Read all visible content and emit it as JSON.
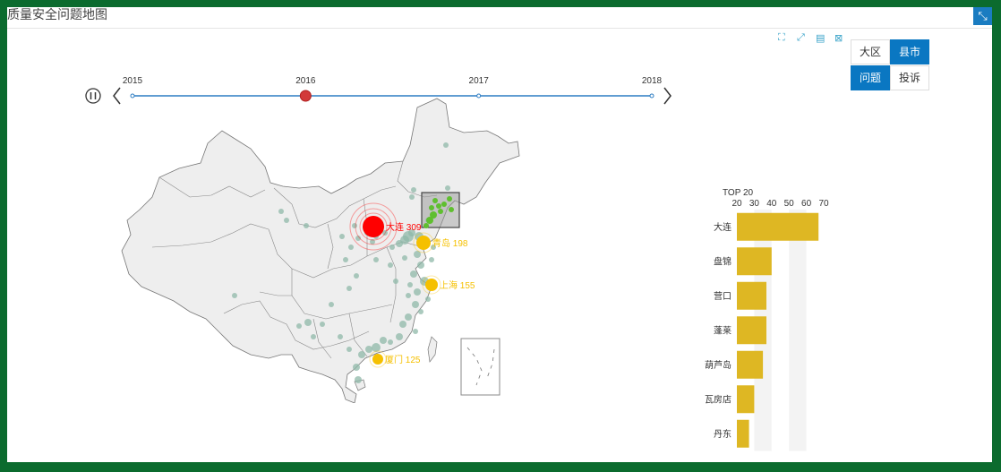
{
  "header": {
    "title": "质量安全问题地图"
  },
  "toolbox": {
    "icons": [
      "zoom-select-icon",
      "zoom-reset-icon",
      "data-view-icon",
      "save-image-icon"
    ],
    "glyphs": [
      "⛶",
      "⤢",
      "▤",
      "⊠"
    ]
  },
  "toggles": {
    "region": {
      "options": [
        "大区",
        "县市"
      ],
      "selected": "县市"
    },
    "metric": {
      "options": [
        "问题",
        "投诉"
      ],
      "selected": "问题"
    }
  },
  "timeline": {
    "years": [
      "2015",
      "2016",
      "2017",
      "2018"
    ],
    "current": "2016"
  },
  "colors": {
    "accent": "#0a77c2",
    "timeline": "#2d7dc3",
    "bar": "#deb723",
    "top": "#ff0000",
    "mid": "#f5c000",
    "dot": "#8fb8a8",
    "green": "#5fbf2f"
  },
  "map_labels": [
    {
      "name": "大连",
      "value": 309,
      "text": "大连 309",
      "rank": "top"
    },
    {
      "name": "青岛",
      "value": 198,
      "text": "青岛 198",
      "rank": "mid"
    },
    {
      "name": "上海",
      "value": 155,
      "text": "上海 155",
      "rank": "mid"
    },
    {
      "name": "厦门",
      "value": 125,
      "text": "厦门 125",
      "rank": "mid"
    }
  ],
  "chart_data": {
    "type": "bar",
    "title": "TOP 20",
    "categories": [
      "大连",
      "盘锦",
      "营口",
      "蓬莱",
      "葫芦岛",
      "瓦房店",
      "丹东"
    ],
    "values": [
      67,
      40,
      37,
      37,
      35,
      30,
      27
    ],
    "xlim": [
      20,
      70
    ],
    "xticks": [
      20,
      30,
      40,
      50,
      60,
      70
    ]
  }
}
